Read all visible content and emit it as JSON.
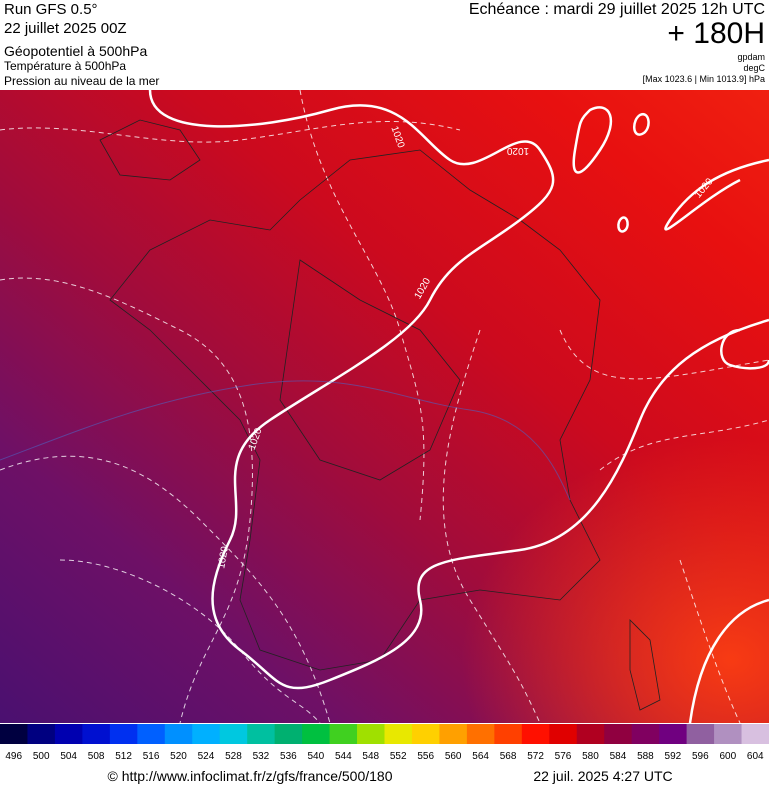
{
  "header": {
    "run": "Run GFS 0.5°",
    "date": "22 juillet 2025 00Z",
    "title": "Géopotentiel à 500hPa",
    "subtitle1": "Température à 500hPa",
    "subtitle2": "Pression au niveau de la mer",
    "echeance": "Echéance : mardi 29 juillet 2025 12h UTC",
    "lead": "+ 180H",
    "unit1": "gpdam",
    "unit2": "degC",
    "range": "[Max 1023.6 | Min 1013.9] hPa"
  },
  "isobar_labels": [
    "1020",
    "1020",
    "1020",
    "1020",
    "1020",
    "1020"
  ],
  "colorbar": {
    "labels": [
      496,
      500,
      504,
      508,
      512,
      516,
      520,
      524,
      528,
      532,
      536,
      540,
      544,
      548,
      552,
      556,
      560,
      564,
      568,
      572,
      576,
      580,
      584,
      588,
      592,
      596,
      600,
      604
    ]
  },
  "footer": {
    "url": "© http://www.infoclimat.fr/z/gfs/france/500/180",
    "timestamp": "22 juil. 2025  4:27 UTC"
  }
}
